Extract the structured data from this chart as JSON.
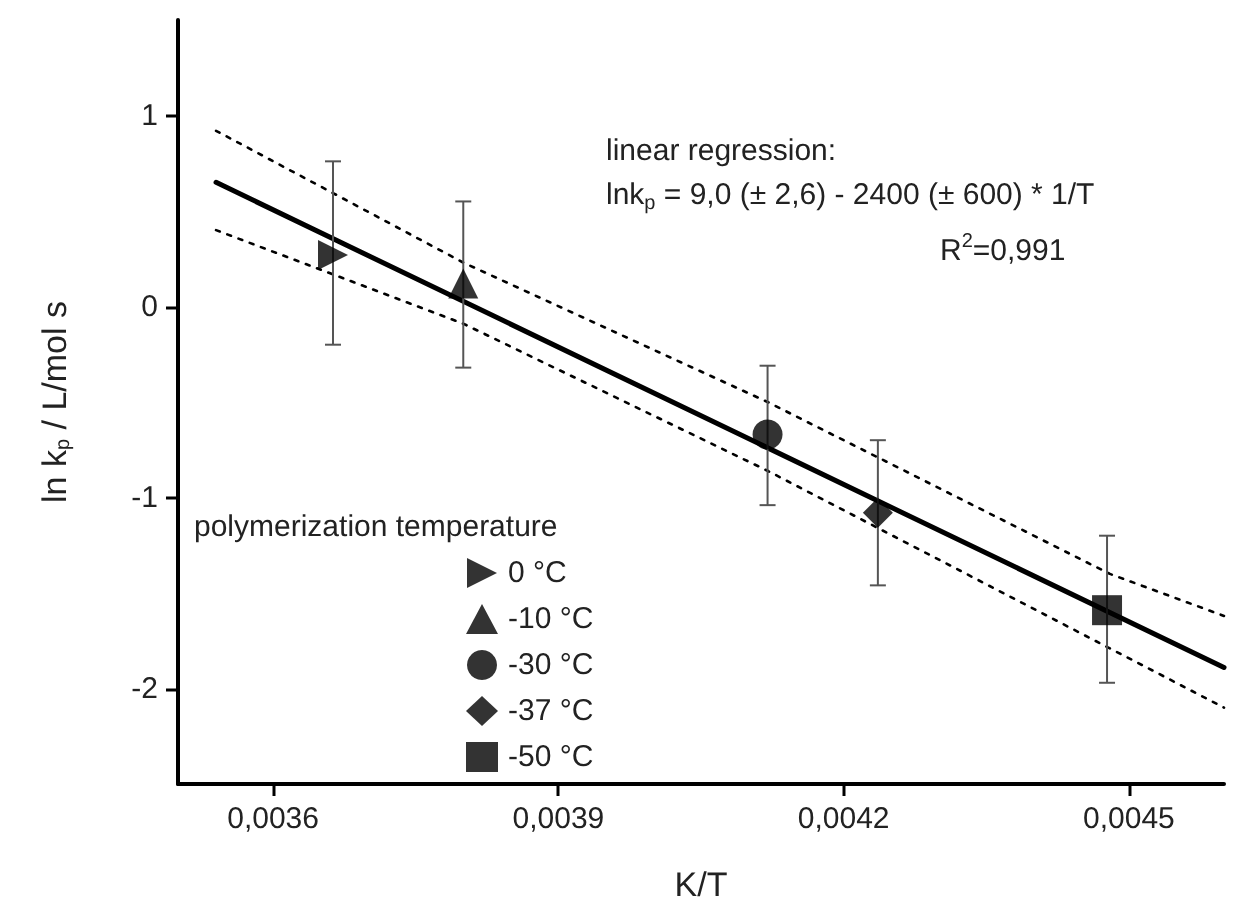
{
  "chart_data": {
    "type": "scatter",
    "xlabel": "K/T",
    "ylabel": "ln k$_{p}$ / L/mol s",
    "legend_title": "polymerization temperature",
    "legend": "bottom left",
    "grid": false,
    "annotations": [
      "linear regression:",
      "lnk$_{p}$ = 9,0 (± 2,6) - 2400 (± 600) * 1/T",
      "R$^{2}$=0,991"
    ],
    "xlim": [
      0.0035,
      0.0046
    ],
    "xticks": [
      {
        "value": 0.0036,
        "label": "0,0036"
      },
      {
        "value": 0.0039,
        "label": "0,0039"
      },
      {
        "value": 0.0042,
        "label": "0,0042"
      },
      {
        "value": 0.0045,
        "label": "0,0045"
      }
    ],
    "ylim": [
      -2.5,
      1.5
    ],
    "yticks": [
      1,
      0,
      -1,
      -2
    ],
    "series": [
      {
        "type": "line",
        "color": "#000000",
        "line_style": "dotted",
        "x": [
          0.00354,
          0.0038,
          0.00412,
          0.00448,
          0.0046
        ],
        "values": [
          0.92,
          0.23,
          -0.5,
          -1.4,
          -1.62
        ]
      },
      {
        "type": "line",
        "color": "#000000",
        "line_style": "dotted",
        "x": [
          0.00354,
          0.0038,
          0.00412,
          0.00448,
          0.0046
        ],
        "values": [
          0.4,
          -0.09,
          -0.86,
          -1.79,
          -2.1
        ]
      },
      {
        "type": "line",
        "color": "#000000",
        "line_style": "solid",
        "x": [
          0.00354,
          0.0046
        ],
        "values": [
          0.65,
          -1.89
        ]
      },
      {
        "name": "0 °C",
        "color": "#000000",
        "marker": "triangle-right",
        "x": [
          0.003663
        ],
        "values": [
          0.27
        ],
        "errors": [
          [
            -0.2,
            0.76
          ]
        ]
      },
      {
        "name": "-10 °C",
        "color": "#000000",
        "marker": "triangle",
        "x": [
          0.0038
        ],
        "values": [
          0.12
        ],
        "errors": [
          [
            -0.32,
            0.55
          ]
        ]
      },
      {
        "name": "-30 °C",
        "color": "#000000",
        "marker": "circle",
        "x": [
          0.00412
        ],
        "values": [
          -0.67
        ],
        "errors": [
          [
            -1.04,
            -0.31
          ]
        ]
      },
      {
        "name": "-37 °C",
        "color": "#000000",
        "marker": "diamond",
        "x": [
          0.004236
        ],
        "values": [
          -1.08
        ],
        "errors": [
          [
            -1.46,
            -0.7
          ]
        ]
      },
      {
        "name": "-50 °C",
        "color": "#000000",
        "marker": "square",
        "x": [
          0.004477
        ],
        "values": [
          -1.59
        ],
        "errors": [
          [
            -1.97,
            -1.2
          ]
        ]
      }
    ]
  }
}
